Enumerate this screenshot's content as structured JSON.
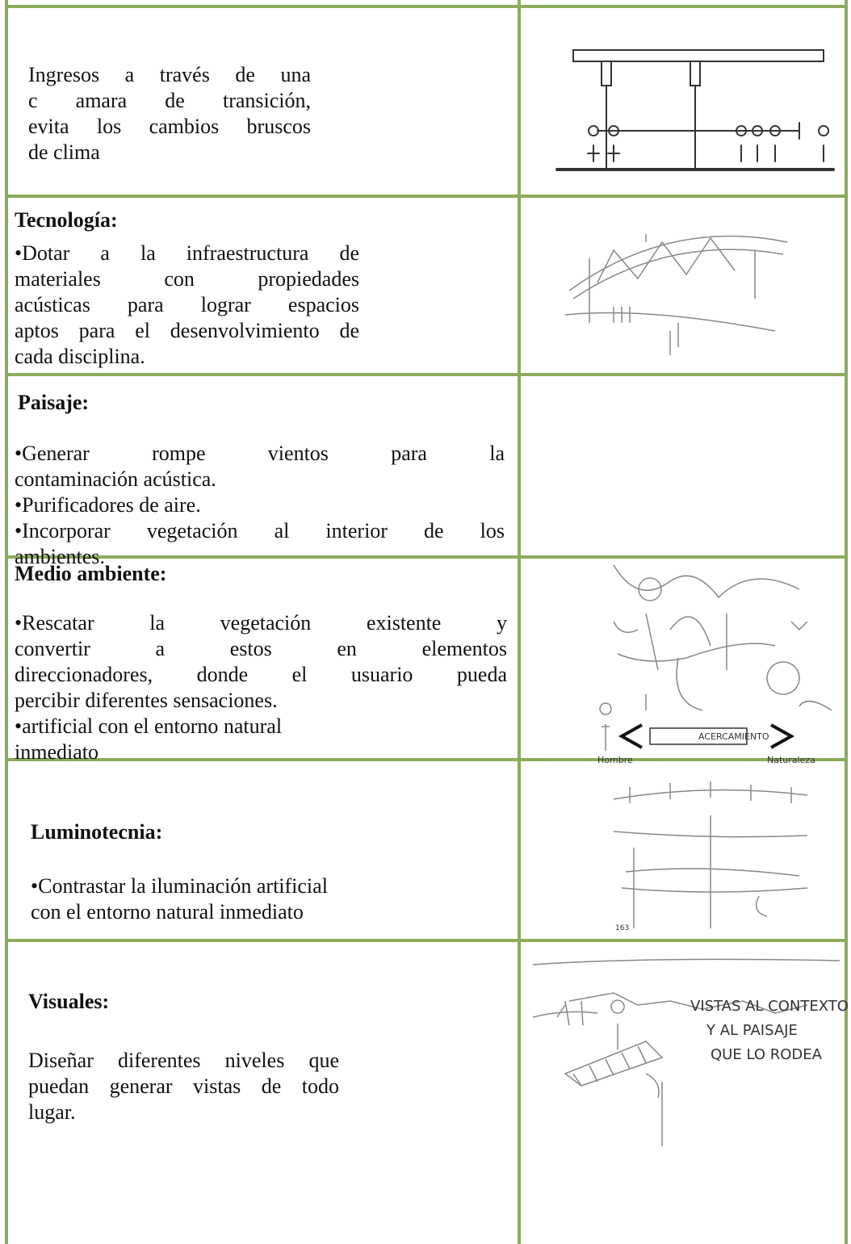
{
  "table": {
    "rows": [
      {
        "lines": [
          "Ingresos a través de una",
          "c amara de transición,",
          "evita los cambios bruscos",
          "de clima"
        ]
      },
      {
        "heading": "Tecnología:",
        "lines": [
          "•Dotar a la infraestructura de",
          "materiales con propiedades",
          "acústicas para lograr espacios",
          "aptos para el desenvolvimiento de",
          "cada disciplina."
        ]
      },
      {
        "heading": "Paisaje:",
        "lines": [
          "•Generar rompe vientos para la",
          "contaminación acústica.",
          "•Purificadores de aire.",
          "•Incorporar vegetación al interior de los",
          "ambientes."
        ]
      },
      {
        "heading": "Medio ambiente:",
        "lines": [
          "•Rescatar la vegetación existente y",
          "convertir a estos en elementos",
          "direccionadores, donde el usuario pueda",
          "percibir diferentes sensaciones.",
          "•artificial con el entorno natural",
          "inmediato"
        ],
        "sketch_labels": [
          "ACERCAMIENTO",
          "Hombre",
          "Naturaleza"
        ]
      },
      {
        "heading": "Luminotecnia:",
        "lines": [
          "•Contrastar la iluminación artificial",
          "con el entorno natural inmediato"
        ],
        "sketch_labels": [
          "163"
        ]
      },
      {
        "heading": "Visuales:",
        "lines": [
          "Diseñar diferentes niveles que",
          "puedan generar vistas de todo",
          "lugar."
        ],
        "sketch_labels": [
          "VISTAS AL CONTEXTO",
          "Y AL PAISAJE",
          "QUE LO RODEA"
        ]
      }
    ]
  }
}
